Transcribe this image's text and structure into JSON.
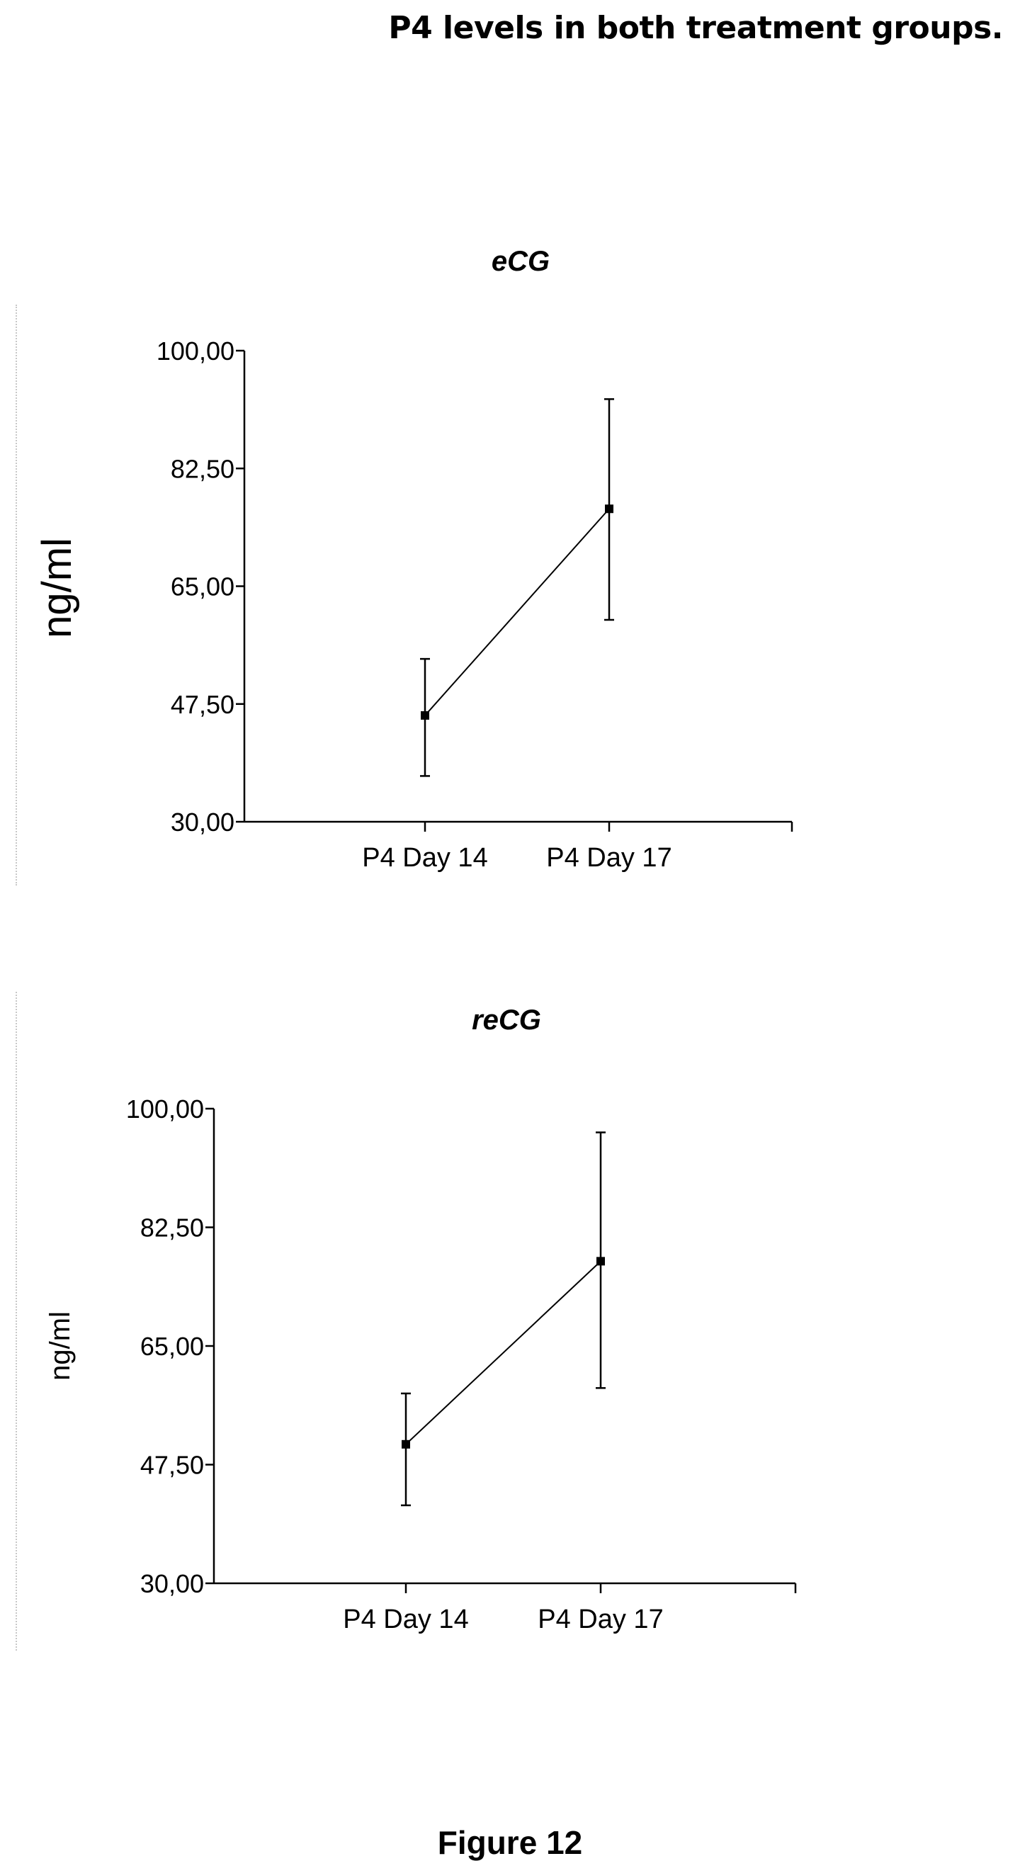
{
  "header": {
    "title": "P4 levels in both treatment groups."
  },
  "footer": {
    "caption": "Figure 12"
  },
  "chart_data": [
    {
      "type": "line",
      "title": "eCG",
      "ylabel": "ng/ml",
      "categories": [
        "P4 Day 14",
        "P4 Day 17"
      ],
      "series": [
        {
          "values": [
            45.8,
            76.5
          ],
          "error_low": [
            36.8,
            60.0
          ],
          "error_high": [
            54.2,
            92.8
          ]
        }
      ],
      "ylim": [
        30.0,
        100.0
      ],
      "yticks": [
        100.0,
        82.5,
        65.0,
        47.5,
        30.0
      ],
      "ytick_labels": [
        "100,00",
        "82,50",
        "65,00",
        "47,50",
        "30,00"
      ],
      "grid": false,
      "color": "#000000"
    },
    {
      "type": "line",
      "title": "reCG",
      "ylabel": "ng/ml",
      "categories": [
        "P4 Day 14",
        "P4 Day 17"
      ],
      "series": [
        {
          "values": [
            50.5,
            77.5
          ],
          "error_low": [
            41.5,
            58.8
          ],
          "error_high": [
            58.0,
            96.5
          ]
        }
      ],
      "ylim": [
        30.0,
        100.0
      ],
      "yticks": [
        100.0,
        82.5,
        65.0,
        47.5,
        30.0
      ],
      "ytick_labels": [
        "100,00",
        "82,50",
        "65,00",
        "47,50",
        "30,00"
      ],
      "grid": false,
      "color": "#000000"
    }
  ]
}
